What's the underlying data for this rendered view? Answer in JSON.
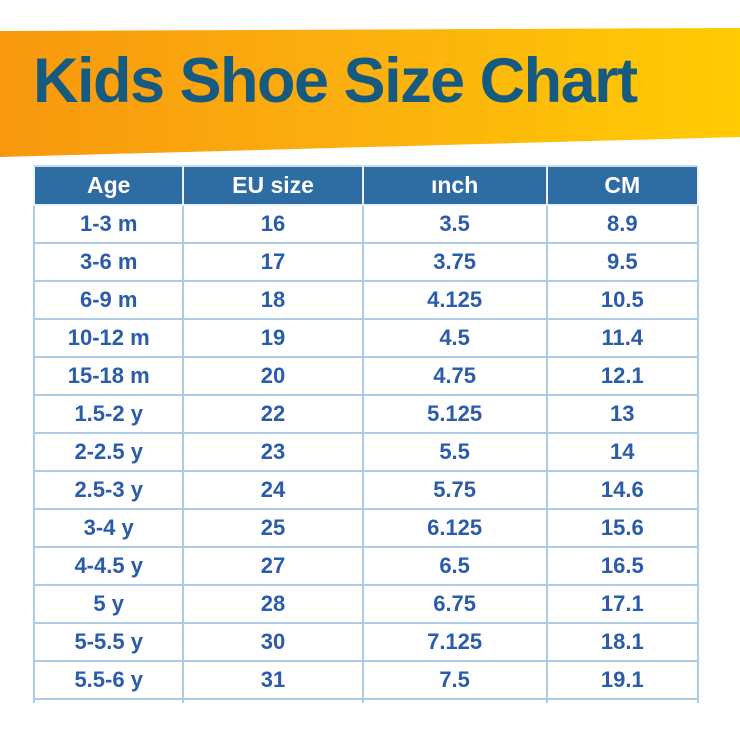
{
  "title": "Kids Shoe Size Chart",
  "colors": {
    "banner_gradient_start": "#F8980D",
    "banner_gradient_end": "#FFCB02",
    "title_text": "#175A80",
    "header_background": "#2E6CA4",
    "header_text": "#FFFFFF",
    "cell_text": "#2B5CAB",
    "table_border": "#AECBE8",
    "page_background": "#FFFFFF"
  },
  "chart_data": {
    "type": "table",
    "title": "Kids Shoe Size Chart",
    "columns": [
      "Age",
      "EU size",
      "ınch",
      "CM"
    ],
    "rows": [
      [
        "1-3 m",
        "16",
        "3.5",
        "8.9"
      ],
      [
        "3-6 m",
        "17",
        "3.75",
        "9.5"
      ],
      [
        "6-9 m",
        "18",
        "4.125",
        "10.5"
      ],
      [
        "10-12 m",
        "19",
        "4.5",
        "11.4"
      ],
      [
        "15-18 m",
        "20",
        "4.75",
        "12.1"
      ],
      [
        "1.5-2 y",
        "22",
        "5.125",
        "13"
      ],
      [
        "2-2.5 y",
        "23",
        "5.5",
        "14"
      ],
      [
        "2.5-3 y",
        "24",
        "5.75",
        "14.6"
      ],
      [
        "3-4 y",
        "25",
        "6.125",
        "15.6"
      ],
      [
        "4-4.5 y",
        "27",
        "6.5",
        "16.5"
      ],
      [
        "5 y",
        "28",
        "6.75",
        "17.1"
      ],
      [
        "5-5.5 y",
        "30",
        "7.125",
        "18.1"
      ],
      [
        "5.5-6 y",
        "31",
        "7.5",
        "19.1"
      ]
    ]
  }
}
